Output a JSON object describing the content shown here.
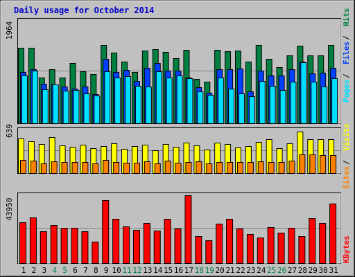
{
  "title": "Daily usage for October 2014",
  "colors": {
    "background": "#c0c0c0",
    "panel": "#c0c0c0",
    "title_text": "#0000cc",
    "hits": "#008040",
    "files": "#0040ff",
    "pages": "#00e0ff",
    "visits": "#ffff00",
    "sites": "#ff8000",
    "kbytes": "#ff0000",
    "weekend_label": "#008040",
    "weekday_label": "#000000"
  },
  "chart_data": [
    {
      "type": "bar",
      "name": "hits-files-pages",
      "max_label": "1964",
      "ymax": 1964,
      "legend": [
        {
          "label": "Pages",
          "color": "#00e0ff"
        },
        {
          "label": "Files",
          "color": "#0040ff"
        },
        {
          "label": "Hits",
          "color": "#008040"
        }
      ],
      "categories": [
        "1",
        "2",
        "3",
        "4",
        "5",
        "6",
        "7",
        "8",
        "9",
        "10",
        "11",
        "12",
        "13",
        "14",
        "15",
        "16",
        "17",
        "18",
        "19",
        "20",
        "21",
        "22",
        "23",
        "24",
        "25",
        "26",
        "27",
        "28",
        "29",
        "30",
        "31"
      ],
      "series": [
        {
          "name": "Hits",
          "values": [
            1440,
            1440,
            880,
            1040,
            870,
            1150,
            990,
            940,
            1500,
            1360,
            1180,
            980,
            1400,
            1420,
            1370,
            1250,
            1410,
            850,
            800,
            1410,
            1380,
            1400,
            1180,
            1500,
            1230,
            1080,
            1300,
            1480,
            1300,
            1300,
            1500
          ]
        },
        {
          "name": "Files",
          "values": [
            980,
            1030,
            750,
            740,
            700,
            660,
            700,
            560,
            1230,
            980,
            1020,
            810,
            1060,
            1160,
            1010,
            1010,
            870,
            690,
            590,
            1030,
            1030,
            1050,
            610,
            1010,
            910,
            920,
            1040,
            1180,
            960,
            970,
            1060
          ]
        },
        {
          "name": "Pages",
          "values": [
            910,
            1010,
            650,
            740,
            620,
            640,
            570,
            530,
            1000,
            880,
            900,
            710,
            700,
            1000,
            880,
            910,
            860,
            610,
            550,
            880,
            670,
            570,
            520,
            810,
            720,
            640,
            790,
            1170,
            800,
            700,
            860
          ]
        }
      ]
    },
    {
      "type": "bar",
      "name": "visits-sites",
      "max_label": "639",
      "ymax": 639,
      "legend": [
        {
          "label": "Sites",
          "color": "#ff8000"
        },
        {
          "label": "Visits",
          "color": "#ffff00"
        }
      ],
      "categories": [
        "1",
        "2",
        "3",
        "4",
        "5",
        "6",
        "7",
        "8",
        "9",
        "10",
        "11",
        "12",
        "13",
        "14",
        "15",
        "16",
        "17",
        "18",
        "19",
        "20",
        "21",
        "22",
        "23",
        "24",
        "25",
        "26",
        "27",
        "28",
        "29",
        "30",
        "31"
      ],
      "series": [
        {
          "name": "Visits",
          "values": [
            520,
            470,
            430,
            540,
            410,
            390,
            420,
            370,
            400,
            440,
            360,
            400,
            420,
            340,
            430,
            390,
            450,
            410,
            350,
            450,
            430,
            380,
            400,
            460,
            500,
            370,
            440,
            620,
            510,
            510,
            510
          ]
        },
        {
          "name": "Sites",
          "values": [
            200,
            190,
            140,
            180,
            170,
            160,
            160,
            140,
            200,
            170,
            150,
            150,
            180,
            140,
            190,
            150,
            170,
            180,
            140,
            170,
            170,
            170,
            170,
            180,
            170,
            160,
            190,
            280,
            280,
            270,
            270
          ]
        }
      ]
    },
    {
      "type": "bar",
      "name": "kbytes",
      "max_label": "43950",
      "ymax": 43950,
      "legend": [
        {
          "label": "KBytes",
          "color": "#ff0000"
        }
      ],
      "categories": [
        "1",
        "2",
        "3",
        "4",
        "5",
        "6",
        "7",
        "8",
        "9",
        "10",
        "11",
        "12",
        "13",
        "14",
        "15",
        "16",
        "17",
        "18",
        "19",
        "20",
        "21",
        "22",
        "23",
        "24",
        "25",
        "26",
        "27",
        "28",
        "29",
        "30",
        "31"
      ],
      "series": [
        {
          "name": "KBytes",
          "values": [
            26300,
            29400,
            20700,
            24600,
            22700,
            22700,
            20700,
            14100,
            40600,
            28500,
            23700,
            21700,
            26000,
            21200,
            28800,
            22200,
            43800,
            17700,
            14800,
            25600,
            28700,
            22400,
            19000,
            16500,
            23100,
            19700,
            22700,
            17700,
            29100,
            26000,
            38500
          ]
        }
      ]
    }
  ],
  "x_labels": [
    {
      "text": "1",
      "weekend": false
    },
    {
      "text": "2",
      "weekend": false
    },
    {
      "text": "3",
      "weekend": false
    },
    {
      "text": "4",
      "weekend": true
    },
    {
      "text": "5",
      "weekend": true
    },
    {
      "text": "6",
      "weekend": false
    },
    {
      "text": "7",
      "weekend": false
    },
    {
      "text": "8",
      "weekend": false
    },
    {
      "text": "9",
      "weekend": false
    },
    {
      "text": "10",
      "weekend": false
    },
    {
      "text": "11",
      "weekend": true
    },
    {
      "text": "12",
      "weekend": true
    },
    {
      "text": "13",
      "weekend": false
    },
    {
      "text": "14",
      "weekend": false
    },
    {
      "text": "15",
      "weekend": false
    },
    {
      "text": "16",
      "weekend": false
    },
    {
      "text": "17",
      "weekend": false
    },
    {
      "text": "18",
      "weekend": true
    },
    {
      "text": "19",
      "weekend": true
    },
    {
      "text": "20",
      "weekend": false
    },
    {
      "text": "21",
      "weekend": false
    },
    {
      "text": "22",
      "weekend": false
    },
    {
      "text": "23",
      "weekend": false
    },
    {
      "text": "24",
      "weekend": false
    },
    {
      "text": "25",
      "weekend": true
    },
    {
      "text": "26",
      "weekend": true
    },
    {
      "text": "27",
      "weekend": false
    },
    {
      "text": "28",
      "weekend": false
    },
    {
      "text": "29",
      "weekend": false
    },
    {
      "text": "30",
      "weekend": false
    },
    {
      "text": "31",
      "weekend": false
    }
  ]
}
